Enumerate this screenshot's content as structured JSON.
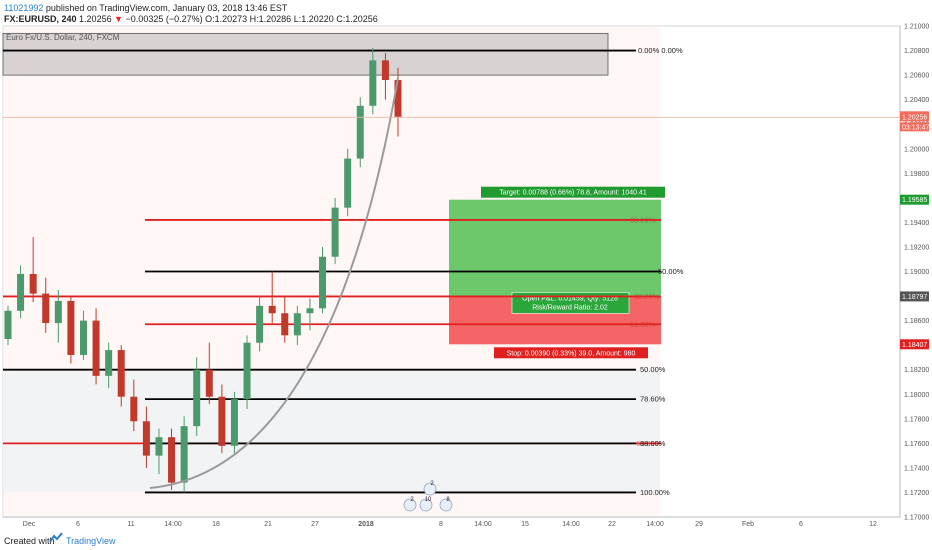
{
  "header": {
    "author": "11021992",
    "published_text": "published on TradingView.com, January 03, 2018 13:46 EST",
    "symbol": "FX:EURUSD, 240",
    "price": "1.20256",
    "change": "−0.00325 (−0.27%)",
    "ohlc": "O:1.20273 H:1.20286 L:1.20220 C:1.20256"
  },
  "footer": {
    "created_with": "Created with",
    "brand": "TradingView"
  },
  "colors": {
    "bull": "#4c9a6c",
    "bear": "#c0392b",
    "fib_black": "#000000",
    "fib_red": "#e02020",
    "target_green": "#5cc25c",
    "stop_red": "#f25555",
    "grid": "#eef2f5"
  },
  "chart_data": {
    "type": "candlestick",
    "title": "Euro Fx/U.S. Dollar, 240, FXCM",
    "ylim": [
      1.17,
      1.21
    ],
    "y_ticks": [
      "1.21000",
      "1.20800",
      "1.20600",
      "1.20400",
      "1.20200",
      "1.20000",
      "1.19800",
      "1.19600",
      "1.19400",
      "1.19200",
      "1.19000",
      "1.18800",
      "1.18600",
      "1.18400",
      "1.18200",
      "1.18000",
      "1.17800",
      "1.17600",
      "1.17400",
      "1.17200",
      "1.17000"
    ],
    "x_ticks": [
      "Dec",
      "6",
      "11",
      "14:00",
      "18",
      "21",
      "27",
      "2018",
      "8",
      "14:00",
      "15",
      "14:00",
      "22",
      "14:00",
      "29",
      "Feb",
      "6",
      "12"
    ],
    "last_price": "1.20256",
    "countdown": "03:13:47",
    "price_tags": [
      {
        "label": "1.19585",
        "price": 1.19585,
        "color": "#1f9b2f"
      },
      {
        "label": "1.18797",
        "price": 1.18797,
        "color": "#555555"
      },
      {
        "label": "1.18407",
        "price": 1.18407,
        "color": "#e02020"
      }
    ],
    "candle_ohlc": [
      [
        1.1845,
        1.1872,
        1.184,
        1.1868
      ],
      [
        1.1868,
        1.1905,
        1.1862,
        1.1898
      ],
      [
        1.1898,
        1.1928,
        1.1875,
        1.1882
      ],
      [
        1.1882,
        1.1895,
        1.185,
        1.1858
      ],
      [
        1.1858,
        1.1885,
        1.1842,
        1.1876
      ],
      [
        1.1876,
        1.188,
        1.1825,
        1.1832
      ],
      [
        1.1832,
        1.1868,
        1.1828,
        1.186
      ],
      [
        1.186,
        1.187,
        1.1808,
        1.1815
      ],
      [
        1.1815,
        1.1842,
        1.1805,
        1.1836
      ],
      [
        1.1836,
        1.184,
        1.179,
        1.1798
      ],
      [
        1.1798,
        1.1812,
        1.177,
        1.1778
      ],
      [
        1.1778,
        1.179,
        1.174,
        1.175
      ],
      [
        1.175,
        1.1772,
        1.1735,
        1.1765
      ],
      [
        1.1765,
        1.1772,
        1.1722,
        1.1728
      ],
      [
        1.1728,
        1.1782,
        1.172,
        1.1774
      ],
      [
        1.1774,
        1.183,
        1.1766,
        1.182
      ],
      [
        1.182,
        1.1842,
        1.1792,
        1.1798
      ],
      [
        1.1798,
        1.1808,
        1.1752,
        1.1758
      ],
      [
        1.1758,
        1.1802,
        1.1752,
        1.1796
      ],
      [
        1.1796,
        1.1848,
        1.1788,
        1.1842
      ],
      [
        1.1842,
        1.188,
        1.1835,
        1.1872
      ],
      [
        1.1872,
        1.19,
        1.1858,
        1.1866
      ],
      [
        1.1866,
        1.188,
        1.1842,
        1.1848
      ],
      [
        1.1848,
        1.1872,
        1.184,
        1.1866
      ],
      [
        1.1866,
        1.1878,
        1.1852,
        1.187
      ],
      [
        1.187,
        1.192,
        1.1866,
        1.1912
      ],
      [
        1.1912,
        1.196,
        1.1906,
        1.1952
      ],
      [
        1.1952,
        1.2,
        1.1945,
        1.1992
      ],
      [
        1.1992,
        1.2042,
        1.1985,
        1.2035
      ],
      [
        1.2035,
        1.2082,
        1.2028,
        1.2072
      ],
      [
        1.2072,
        1.2078,
        1.204,
        1.2056
      ],
      [
        1.2056,
        1.2066,
        1.201,
        1.2026
      ]
    ],
    "fib_levels": [
      {
        "label": "0.00%",
        "prefix": "0.00%",
        "price": 1.208,
        "color": "#000000"
      },
      {
        "label": "38.20%",
        "price": 1.1942,
        "color": "#e02020",
        "muted": true
      },
      {
        "label": "50.00%",
        "price": 1.19,
        "color": "#000000"
      },
      {
        "label": "38.20%",
        "price": 1.18797,
        "color": "#e02020",
        "muted": true
      },
      {
        "label": "61.80%",
        "price": 1.1857,
        "color": "#e02020",
        "muted": true
      },
      {
        "label": "50.00%",
        "price": 1.182,
        "color": "#000000"
      },
      {
        "label": "78.60%",
        "price": 1.1796,
        "color": "#000000"
      },
      {
        "label": "61.80%",
        "price": 1.176,
        "color": "#e02020",
        "muted": true
      },
      {
        "label": "88.60%",
        "price": 1.176,
        "color": "#000000"
      },
      {
        "label": "100.00%",
        "price": 1.172,
        "color": "#000000"
      }
    ],
    "position": {
      "target_label": "Target: 0.00788 (0.66%) 78.8, Amount: 1040.41",
      "stop_label": "Stop: 0.00390 (0.33%) 39.0, Amount: 980",
      "pnl_label_1": "Open P&L: 0.01459, Qty: 5128",
      "pnl_label_2": "Risk/Reward Ratio: 2.02",
      "target_price": 1.19585,
      "entry_price": 1.18797,
      "stop_price": 1.18407
    },
    "event_markers": [
      "2",
      "2",
      "10",
      "8"
    ]
  }
}
